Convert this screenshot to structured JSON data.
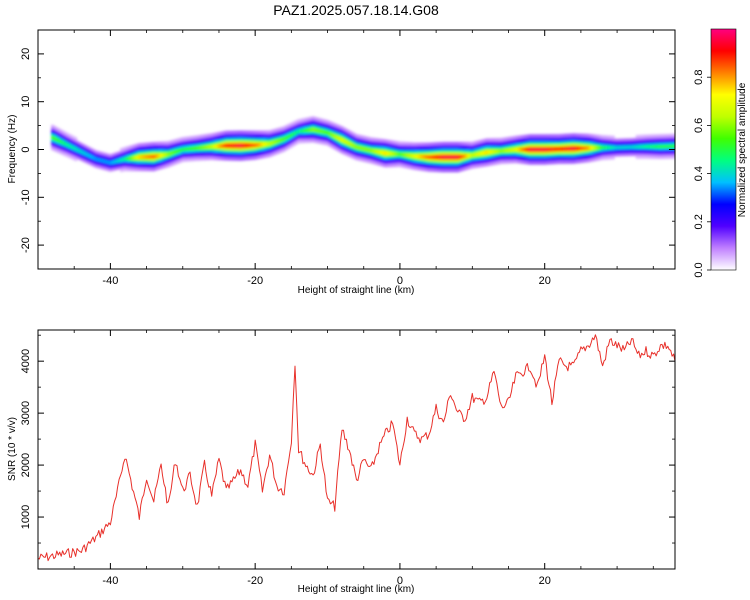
{
  "title": "PAZ1.2025.057.18.14.G08",
  "chart_data": [
    {
      "type": "heatmap",
      "xlabel": "Height of straight line (km)",
      "ylabel": "Frequency (Hz)",
      "xlim": [
        -50,
        38
      ],
      "ylim": [
        -25,
        25
      ],
      "xticks": [
        -40,
        -20,
        0,
        20
      ],
      "yticks": [
        -20,
        -10,
        0,
        10,
        20
      ],
      "colorbar": {
        "label": "Normalized spectral amplitude",
        "range": [
          0.0,
          1.0
        ],
        "ticks": [
          0.0,
          0.2,
          0.4,
          0.6,
          0.8
        ],
        "tick_labels": [
          "0.0",
          "0.2",
          "0.4",
          "0.6",
          "0.8"
        ],
        "colors": [
          "#ffffff",
          "#c080ff",
          "#5000ff",
          "#0000ff",
          "#00c0ff",
          "#00ff80",
          "#40ff00",
          "#c0ff00",
          "#ffff00",
          "#ff8000",
          "#ff0000",
          "#ff0080"
        ]
      },
      "ridge": {
        "x": [
          -48,
          -46,
          -44,
          -42,
          -40,
          -38,
          -36,
          -34,
          -32,
          -30,
          -28,
          -26,
          -24,
          -22,
          -20,
          -18,
          -16,
          -14,
          -12,
          -10,
          -8,
          -6,
          -4,
          -2,
          0,
          2,
          4,
          6,
          8,
          10,
          12,
          14,
          16,
          18,
          20,
          22,
          24,
          26,
          28,
          30,
          32,
          34,
          36,
          38
        ],
        "frequency": [
          2.5,
          1.0,
          -0.5,
          -2.0,
          -2.8,
          -2.0,
          -1.6,
          -1.5,
          -1.0,
          0.0,
          0.3,
          0.6,
          0.8,
          0.8,
          0.9,
          1.2,
          2.2,
          3.8,
          4.2,
          3.5,
          2.0,
          0.5,
          -0.2,
          -0.8,
          -1.0,
          -1.4,
          -1.6,
          -1.6,
          -1.6,
          -1.2,
          -0.6,
          -0.3,
          0.0,
          0.0,
          0.0,
          0.1,
          0.2,
          0.3,
          0.4,
          0.4,
          0.5,
          0.6,
          0.6,
          0.7
        ],
        "amplitude": [
          0.55,
          0.45,
          0.4,
          0.35,
          0.35,
          0.45,
          0.75,
          0.85,
          0.6,
          0.5,
          0.55,
          0.65,
          0.9,
          0.95,
          0.85,
          0.65,
          0.55,
          0.45,
          0.6,
          0.55,
          0.7,
          0.6,
          0.6,
          0.75,
          0.55,
          0.7,
          0.85,
          0.95,
          0.95,
          0.65,
          0.75,
          0.6,
          0.7,
          0.95,
          0.95,
          0.9,
          0.95,
          0.8,
          0.5,
          0.4,
          0.4,
          0.45,
          0.5,
          0.5
        ]
      }
    },
    {
      "type": "line",
      "xlabel": "Height of straight line (km)",
      "ylabel": "SNR (10 * v/v)",
      "xlim": [
        -50,
        38
      ],
      "ylim": [
        0,
        4600
      ],
      "xticks": [
        -40,
        -20,
        0,
        20
      ],
      "yticks": [
        1000,
        2000,
        3000,
        4000
      ],
      "color": "#e8302a",
      "x": [
        -50,
        -48,
        -46,
        -44,
        -42,
        -40,
        -39,
        -38,
        -37,
        -36,
        -35,
        -34,
        -33,
        -32,
        -31,
        -30,
        -29,
        -28,
        -27,
        -26,
        -25,
        -24,
        -23,
        -22,
        -21,
        -20,
        -19,
        -18,
        -17,
        -16,
        -15,
        -14.5,
        -14,
        -13,
        -12,
        -11,
        -10,
        -9,
        -8,
        -7,
        -6,
        -5,
        -4,
        -3,
        -2,
        -1,
        0,
        1,
        2,
        3,
        4,
        5,
        6,
        7,
        8,
        9,
        10,
        11,
        12,
        13,
        14,
        15,
        16,
        17,
        18,
        19,
        20,
        21,
        22,
        23,
        24,
        25,
        26,
        27,
        28,
        29,
        30,
        31,
        32,
        33,
        34,
        35,
        36,
        37,
        38
      ],
      "y": [
        200,
        250,
        300,
        350,
        600,
        900,
        1500,
        2200,
        1600,
        1000,
        1800,
        1300,
        2000,
        1200,
        2100,
        1500,
        1800,
        1200,
        2000,
        1400,
        2100,
        1500,
        1700,
        1900,
        1600,
        2400,
        1500,
        2200,
        1600,
        1500,
        2500,
        4000,
        2300,
        2000,
        1800,
        2400,
        1300,
        1200,
        2700,
        2300,
        1700,
        2100,
        1900,
        2300,
        2600,
        2800,
        2000,
        2900,
        2600,
        2500,
        2600,
        3100,
        2800,
        3400,
        3000,
        2900,
        3300,
        3200,
        3300,
        3800,
        3100,
        3200,
        3700,
        3800,
        3900,
        3500,
        4100,
        3200,
        4000,
        3900,
        3900,
        4200,
        4300,
        4500,
        3900,
        4400,
        4300,
        4200,
        4400,
        4100,
        4200,
        4100,
        4300,
        4300,
        4000
      ]
    }
  ]
}
